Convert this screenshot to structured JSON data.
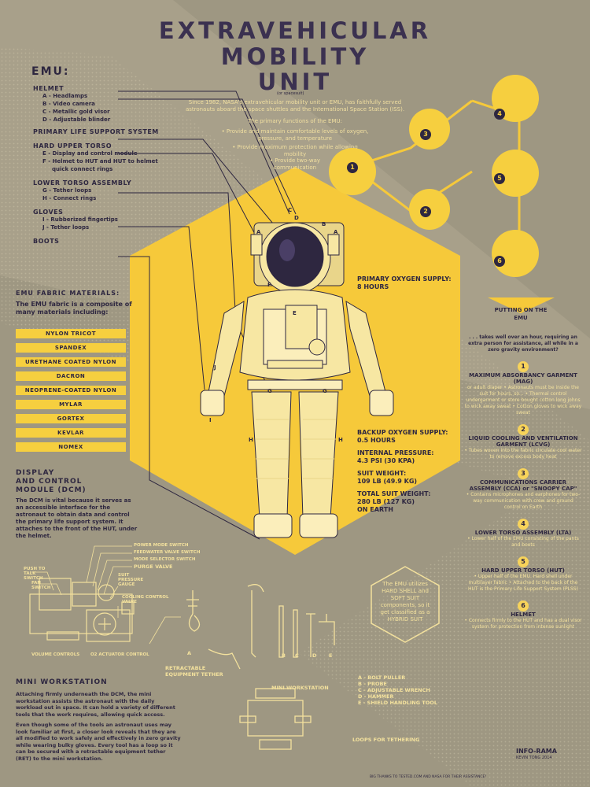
{
  "title": {
    "line1": "EXTRAVEHICULAR",
    "line2": "MOBILITY",
    "line3": "UNIT",
    "note": "(or spacesuit)"
  },
  "intro": {
    "p1": "Since 1982, NASA's extravehicular mobility unit or EMU, has faithfully served astronauts aboard the space shuttles and the International Space Station (ISS).",
    "p2": "The primary functions of the EMU:",
    "f1": "• Provide and maintain comfortable levels of oxygen, pressure, and temperature",
    "f2": "• Provide maximum protection while allowing mobility",
    "f3": "• Provide two-way communication"
  },
  "emu": {
    "header": "EMU:",
    "groups": [
      {
        "name": "HELMET",
        "items": [
          "A - Headlamps",
          "B - Video camera",
          "C - Metallic gold visor",
          "D - Adjustable blinder"
        ]
      },
      {
        "name": "PRIMARY LIFE SUPPORT SYSTEM",
        "items": []
      },
      {
        "name": "HARD UPPER TORSO",
        "items": [
          "E - Display and control module",
          "F - Helmet to HUT and HUT to helmet",
          "quick connect rings"
        ]
      },
      {
        "name": "LOWER TORSO ASSEMBLY",
        "items": [
          "G - Tether loops",
          "H - Connect rings"
        ]
      },
      {
        "name": "GLOVES",
        "items": [
          "I - Rubberized fingertips",
          "J - Tether loops"
        ]
      },
      {
        "name": "BOOTS",
        "items": []
      }
    ]
  },
  "fabric": {
    "header": "EMU FABRIC MATERIALS:",
    "intro": "The EMU fabric is a composite of many materials including:",
    "materials": [
      "NYLON TRICOT",
      "SPANDEX",
      "URETHANE COATED NYLON",
      "DACRON",
      "NEOPRENE-COATED NYLON",
      "MYLAR",
      "GORTEX",
      "KEVLAR",
      "NOMEX"
    ]
  },
  "dcm": {
    "header1": "DISPLAY",
    "header2": "AND CONTROL",
    "header3": "MODULE (DCM)",
    "text": "The DCM is vital because it serves as an accessible interface for the astronaut to obtain data and control the primary life support system. It attaches to the front of the HUT, under the helmet.",
    "labels": {
      "push": "PUSH TO TALK SWITCH",
      "fan": "FAN SWITCH",
      "power": "POWER MODE SWITCH",
      "feed": "FEEDWATER VALVE SWITCH",
      "mode": "MODE SELECTOR SWITCH",
      "purge": "PURGE VALVE",
      "gauge": "SUIT PRESSURE GAUGE",
      "cool": "COOLING CONTROL VALVE",
      "vol": "VOLUME CONTROLS",
      "o2": "O2 ACTUATOR CONTROL"
    }
  },
  "specs": {
    "primary_label": "PRIMARY OXYGEN SUPPLY:",
    "primary_val": "8 HOURS",
    "backup_label": "BACKUP OXYGEN SUPPLY:",
    "backup_val": "0.5 HOURS",
    "pressure_label": "INTERNAL PRESSURE:",
    "pressure_val": "4.3 PSI (30 KPA)",
    "weight_label": "SUIT WEIGHT:",
    "weight_val": "109 LB (49.9 KG)",
    "total_label": "TOTAL SUIT WEIGHT:",
    "total_val": "280 LB (127 KG)",
    "total_note": "ON EARTH"
  },
  "suit_labels": {
    "a1": "A",
    "a2": "A",
    "b": "B",
    "c": "C",
    "d": "D",
    "e": "E",
    "f": "F",
    "g1": "G",
    "g2": "G",
    "h1": "H",
    "h2": "H",
    "i": "I",
    "j": "J"
  },
  "putting_on": {
    "header1": "PUTTING ON THE",
    "header2": "EMU",
    "intro": ". . . takes well over an hour, requiring an extra person for assistance, all while in a zero gravity environment?",
    "steps": [
      {
        "n": "1",
        "title": "MAXIMUM ABSORBANCY GARMENT (MAG)",
        "body": "or adult diaper • Astronauts must be inside the suit for hours, so... • Thermal control undergarment or store bought cotton long johns to wick away sweat • Cotton gloves to wick away sweat"
      },
      {
        "n": "2",
        "title": "LIQUID COOLING AND VENTILATION GARMENT (LCVG)",
        "body": "• Tubes woven into the fabric circulate cool water to remove excess body heat"
      },
      {
        "n": "3",
        "title": "COMMUNICATIONS CARRIER ASSEMBLY (CCA) or \"SNOOPY CAP\"",
        "body": "• Contains microphones and earphones for two-way communication with crew and ground control on Earth"
      },
      {
        "n": "4",
        "title": "LOWER TORSO ASSEMBLY (LTA)",
        "body": "• Lower half of the EMU consisting of the pants and boots"
      },
      {
        "n": "5",
        "title": "HARD UPPER TORSO (HUT)",
        "body": "• Upper half of the EMU. Hard shell under multilayer fabric • Attached to the back of the HUT is the Primary Life Support System (PLSS)"
      },
      {
        "n": "6",
        "title": "HELMET",
        "body": "• Connects firmly to the HUT and has a dual visor system for protection from intense sunlight"
      }
    ]
  },
  "circle_nums": [
    "1",
    "2",
    "3",
    "4",
    "5",
    "6"
  ],
  "hybrid": "The EMU utilizes HARD SHELL and SOFT SUIT components, so it get classified as a HYBRID SUIT",
  "workstation": {
    "header": "MINI WORKSTATION",
    "p1": "Attaching firmly underneath the DCM, the mini workstation assists the astronaut with the daily workload out in space. It can hold a variety of different tools that the work requires, allowing quick access.",
    "p2": "Even though some of the tools an astronaut uses may look familiar at first, a closer look reveals that they are all modified to work safely and effectively in zero gravity while wearing bulky gloves. Every tool has a loop so it can be secured with a retractable equipment tether (RET) to the mini workstation.",
    "tether_label": "RETRACTABLE EQUIPMENT TETHER",
    "ws_label": "MINI WORKSTATION",
    "loops_label": "LOOPS FOR TETHERING",
    "tools": [
      "A - BOLT PULLER",
      "B - PROBE",
      "C - ADJUSTABLE WRENCH",
      "D - HAMMER",
      "E - SHIELD HANDLING TOOL"
    ],
    "tool_letters": [
      "A",
      "B",
      "C",
      "D",
      "E"
    ]
  },
  "footer": {
    "brand": "INFO-RAMA",
    "credit": "KEVIN TONG 2014",
    "thanks": "BIG THANKS TO TESTED.COM AND NASA FOR THEIR ASSISTANCE!"
  }
}
